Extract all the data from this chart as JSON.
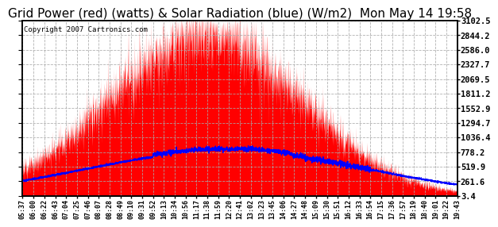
{
  "title": "Grid Power (red) (watts) & Solar Radiation (blue) (W/m2)  Mon May 14 19:58",
  "copyright": "Copyright 2007 Cartronics.com",
  "yticks": [
    3.4,
    261.6,
    519.9,
    778.2,
    1036.4,
    1294.7,
    1552.9,
    1811.2,
    2069.5,
    2327.7,
    2586.0,
    2844.2,
    3102.5
  ],
  "ytick_labels": [
    "3.4",
    "261.6",
    "519.9",
    "778.2",
    "1036.4",
    "1294.7",
    "1552.9",
    "1811.2",
    "2069.5",
    "2327.7",
    "2586.0",
    "2844.2",
    "3102.5"
  ],
  "ymin": 3.4,
  "ymax": 3102.5,
  "background_color": "#ffffff",
  "plot_bg_color": "#ffffff",
  "grid_color": "#aaaaaa",
  "red_color": "#ff0000",
  "blue_color": "#0000ff",
  "title_fontsize": 11,
  "xtick_labels": [
    "05:37",
    "06:00",
    "06:22",
    "06:43",
    "07:04",
    "07:25",
    "07:46",
    "08:07",
    "08:28",
    "08:49",
    "09:10",
    "09:31",
    "09:52",
    "10:13",
    "10:34",
    "10:56",
    "11:17",
    "11:38",
    "11:59",
    "12:20",
    "12:41",
    "13:02",
    "13:23",
    "13:45",
    "14:06",
    "14:27",
    "14:48",
    "15:09",
    "15:30",
    "15:51",
    "16:12",
    "16:33",
    "16:54",
    "17:15",
    "17:36",
    "17:57",
    "18:19",
    "18:40",
    "19:01",
    "19:22",
    "19:43"
  ]
}
